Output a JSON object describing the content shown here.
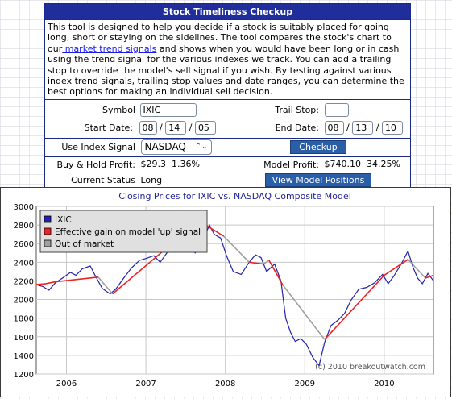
{
  "tool": {
    "title": "Stock Timeliness Checkup",
    "description_before": "This tool is designed to help you decide if a stock is suitably placed for going long, short or staying on the sidelines. The tool compares the stock's chart to our",
    "description_link": " market trend signals",
    "description_after": " and shows when you would have been long or in cash using the trend signal for the various indexes we track. You can add a trailing stop to override the model's sell signal if you wish. By testing against various index trend signals, trailing stop values and date ranges, you can determine the best options for making an individual sell decision.",
    "symbol_label": "Symbol",
    "symbol_value": "IXIC",
    "trail_stop_label": "Trail Stop:",
    "trail_stop_value": "",
    "start_date_label": "Start Date:",
    "start_month": "08",
    "start_day": "14",
    "start_year": "05",
    "end_date_label": "End Date:",
    "end_month": "08",
    "end_day": "13",
    "end_year": "10",
    "date_sep": "/",
    "index_signal_label": "Use Index Signal",
    "index_signal_value": "NASDAQ",
    "checkup_button": "Checkup",
    "buy_hold_label": "Buy & Hold Profit:",
    "buy_hold_value": "$29.3  1.36%",
    "model_profit_label": "Model Profit:",
    "model_profit_value": "$740.10  34.25%",
    "current_status_label": "Current Status",
    "current_status_value": "Long",
    "view_positions_button": "View Model Positions"
  },
  "chart_data": {
    "type": "line",
    "title": "Closing Prices for IXIC vs. NASDAQ Composite Model",
    "xlabel": "",
    "ylabel": "",
    "ylim": [
      1200,
      3000
    ],
    "yticks": [
      1200,
      1400,
      1600,
      1800,
      2000,
      2200,
      2400,
      2600,
      2800,
      3000
    ],
    "xlim": [
      2005.62,
      2010.62
    ],
    "xticks": [
      {
        "label": "2006",
        "pos": 2006.0
      },
      {
        "label": "2007",
        "pos": 2007.0
      },
      {
        "label": "2008",
        "pos": 2008.0
      },
      {
        "label": "2009",
        "pos": 2009.0
      },
      {
        "label": "2010",
        "pos": 2010.0
      }
    ],
    "grid": true,
    "legend_position": "top-left",
    "watermark": "(c) 2010 breakoutwatch.com",
    "colors": {
      "price": "#2222aa",
      "gain": "#ee2222",
      "out": "#a0a0a0",
      "axis_bg": "#ffffff",
      "title": "#222299"
    },
    "series": [
      {
        "name": "IXIC",
        "points": [
          [
            2005.62,
            2160
          ],
          [
            2005.7,
            2140
          ],
          [
            2005.78,
            2100
          ],
          [
            2005.86,
            2180
          ],
          [
            2005.95,
            2230
          ],
          [
            2006.05,
            2290
          ],
          [
            2006.12,
            2260
          ],
          [
            2006.2,
            2330
          ],
          [
            2006.3,
            2360
          ],
          [
            2006.36,
            2260
          ],
          [
            2006.45,
            2120
          ],
          [
            2006.55,
            2060
          ],
          [
            2006.62,
            2110
          ],
          [
            2006.72,
            2230
          ],
          [
            2006.82,
            2340
          ],
          [
            2006.92,
            2420
          ],
          [
            2007.0,
            2440
          ],
          [
            2007.1,
            2470
          ],
          [
            2007.18,
            2400
          ],
          [
            2007.28,
            2520
          ],
          [
            2007.38,
            2580
          ],
          [
            2007.48,
            2620
          ],
          [
            2007.55,
            2560
          ],
          [
            2007.62,
            2500
          ],
          [
            2007.72,
            2640
          ],
          [
            2007.8,
            2800
          ],
          [
            2007.86,
            2700
          ],
          [
            2007.94,
            2660
          ],
          [
            2008.02,
            2460
          ],
          [
            2008.1,
            2300
          ],
          [
            2008.2,
            2270
          ],
          [
            2008.3,
            2400
          ],
          [
            2008.38,
            2480
          ],
          [
            2008.45,
            2450
          ],
          [
            2008.52,
            2300
          ],
          [
            2008.62,
            2380
          ],
          [
            2008.7,
            2200
          ],
          [
            2008.76,
            1800
          ],
          [
            2008.82,
            1650
          ],
          [
            2008.88,
            1550
          ],
          [
            2008.95,
            1580
          ],
          [
            2009.02,
            1520
          ],
          [
            2009.1,
            1380
          ],
          [
            2009.18,
            1290
          ],
          [
            2009.25,
            1540
          ],
          [
            2009.33,
            1720
          ],
          [
            2009.42,
            1780
          ],
          [
            2009.5,
            1850
          ],
          [
            2009.58,
            1990
          ],
          [
            2009.68,
            2110
          ],
          [
            2009.78,
            2130
          ],
          [
            2009.88,
            2180
          ],
          [
            2009.98,
            2270
          ],
          [
            2010.05,
            2170
          ],
          [
            2010.12,
            2250
          ],
          [
            2010.22,
            2390
          ],
          [
            2010.3,
            2520
          ],
          [
            2010.36,
            2350
          ],
          [
            2010.42,
            2230
          ],
          [
            2010.48,
            2170
          ],
          [
            2010.55,
            2280
          ],
          [
            2010.62,
            2200
          ]
        ]
      },
      {
        "name": "Effective gain on model 'up' signal",
        "segments": [
          [
            [
              2005.62,
              2160
            ],
            [
              2005.74,
              2170
            ],
            [
              2005.86,
              2190
            ],
            [
              2006.4,
              2240
            ]
          ],
          [
            [
              2006.58,
              2060
            ],
            [
              2007.3,
              2580
            ],
            [
              2007.75,
              2800
            ],
            [
              2007.98,
              2680
            ]
          ],
          [
            [
              2008.3,
              2400
            ],
            [
              2008.48,
              2380
            ]
          ],
          [
            [
              2008.55,
              2420
            ],
            [
              2008.72,
              2160
            ]
          ],
          [
            [
              2009.25,
              1570
            ],
            [
              2010.0,
              2260
            ],
            [
              2010.3,
              2430
            ]
          ],
          [
            [
              2010.52,
              2230
            ],
            [
              2010.62,
              2260
            ]
          ]
        ]
      },
      {
        "name": "Out of market",
        "segments": [
          [
            [
              2006.4,
              2240
            ],
            [
              2006.58,
              2060
            ]
          ],
          [
            [
              2007.98,
              2680
            ],
            [
              2008.3,
              2400
            ]
          ],
          [
            [
              2008.48,
              2380
            ],
            [
              2008.55,
              2420
            ]
          ],
          [
            [
              2008.72,
              2160
            ],
            [
              2009.25,
              1570
            ]
          ],
          [
            [
              2010.3,
              2430
            ],
            [
              2010.52,
              2230
            ]
          ]
        ]
      }
    ]
  }
}
